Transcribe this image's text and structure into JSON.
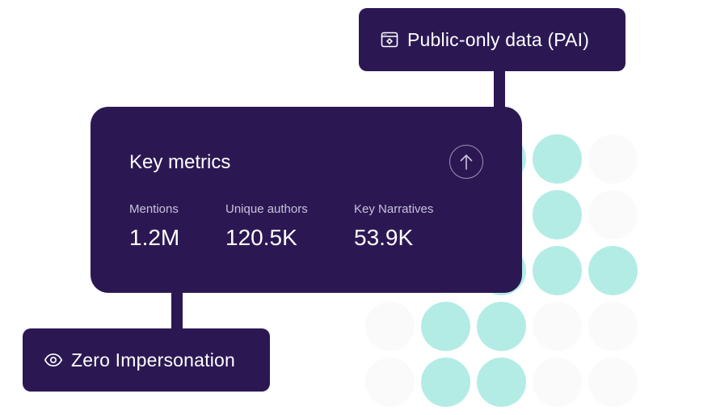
{
  "badges": {
    "pai": {
      "label": "Public-only data (PAI)",
      "icon": "browser-window-gear-icon"
    },
    "zero": {
      "label": "Zero Impersonation",
      "icon": "eye-icon"
    }
  },
  "card": {
    "title": "Key metrics",
    "action_icon": "arrow-up-circle-icon",
    "metrics": [
      {
        "label": "Mentions",
        "value": "1.2M"
      },
      {
        "label": "Unique authors",
        "value": "120.5K"
      },
      {
        "label": "Key Narratives",
        "value": "53.9K"
      }
    ]
  },
  "colors": {
    "card_background": "#2b1853",
    "dot_active": "#b3ece5",
    "dot_inactive": "#fafafb",
    "text_primary": "#ffffff",
    "text_muted": "#c8c2d9"
  },
  "decoration": {
    "dot_grid_pattern": [
      [
        0,
        1,
        1,
        0
      ],
      [
        0,
        0,
        1,
        0
      ],
      [
        0,
        1,
        1,
        1
      ],
      [
        1,
        1,
        0,
        0
      ],
      [
        1,
        1,
        0,
        0
      ]
    ]
  }
}
